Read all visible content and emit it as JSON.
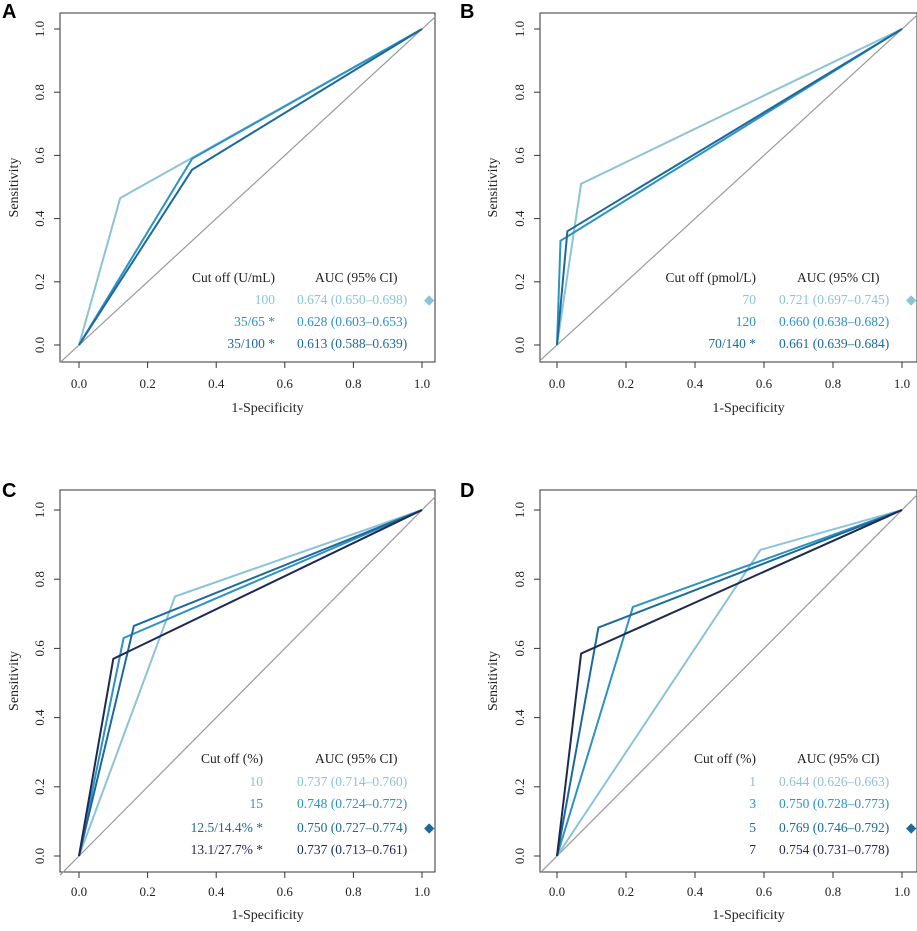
{
  "chart_data": [
    {
      "panel": "A",
      "type": "line",
      "xlabel": "1-Specificity",
      "ylabel": "Sensitivity",
      "xlim": [
        0,
        1
      ],
      "ylim": [
        0,
        1
      ],
      "xticks": [
        "0.0",
        "0.2",
        "0.4",
        "0.6",
        "0.8",
        "1.0"
      ],
      "yticks": [
        "0.0",
        "0.2",
        "0.4",
        "0.6",
        "0.8",
        "1.0"
      ],
      "legend_header": [
        "Cut off (U/mL)",
        "AUC (95% CI)"
      ],
      "series": [
        {
          "name": "100",
          "auc": "0.674 (0.650–0.698)",
          "marker": "◆",
          "color": "#8cc3d6",
          "x": [
            0,
            0.12,
            1
          ],
          "y": [
            0,
            0.465,
            1
          ]
        },
        {
          "name": "35/65 *",
          "auc": "0.628 (0.603–0.653)",
          "marker": "",
          "color": "#2d92c4",
          "x": [
            0,
            0.33,
            1
          ],
          "y": [
            0,
            0.59,
            1
          ]
        },
        {
          "name": "35/100 *",
          "auc": "0.613 (0.588–0.639)",
          "marker": "",
          "color": "#1c6a9c",
          "x": [
            0,
            0.33,
            1
          ],
          "y": [
            0,
            0.555,
            1
          ]
        }
      ]
    },
    {
      "panel": "B",
      "type": "line",
      "xlabel": "1-Specificity",
      "ylabel": "Sensitivity",
      "xlim": [
        0,
        1
      ],
      "ylim": [
        0,
        1
      ],
      "xticks": [
        "0.0",
        "0.2",
        "0.4",
        "0.6",
        "0.8",
        "1.0"
      ],
      "yticks": [
        "0.0",
        "0.2",
        "0.4",
        "0.6",
        "0.8",
        "1.0"
      ],
      "legend_header": [
        "Cut off (pmol/L)",
        "AUC (95% CI)"
      ],
      "series": [
        {
          "name": "70",
          "auc": "0.721 (0.697–0.745)",
          "marker": "◆",
          "color": "#8cc3d6",
          "x": [
            0,
            0.07,
            1
          ],
          "y": [
            0,
            0.51,
            1
          ]
        },
        {
          "name": "120",
          "auc": "0.660 (0.638–0.682)",
          "marker": "",
          "color": "#2d92c4",
          "x": [
            0,
            0.01,
            0.04,
            1
          ],
          "y": [
            0,
            0.33,
            0.35,
            1
          ]
        },
        {
          "name": "70/140 *",
          "auc": "0.661 (0.639–0.684)",
          "marker": "",
          "color": "#1c6a9c",
          "x": [
            0,
            0.03,
            1
          ],
          "y": [
            0,
            0.36,
            1
          ]
        }
      ]
    },
    {
      "panel": "C",
      "type": "line",
      "xlabel": "1-Specificity",
      "ylabel": "Sensitivity",
      "xlim": [
        0,
        1
      ],
      "ylim": [
        0,
        1
      ],
      "xticks": [
        "0.0",
        "0.2",
        "0.4",
        "0.6",
        "0.8",
        "1.0"
      ],
      "yticks": [
        "0.0",
        "0.2",
        "0.4",
        "0.6",
        "0.8",
        "1.0"
      ],
      "legend_header": [
        "Cut off (%)",
        "AUC (95% CI)"
      ],
      "series": [
        {
          "name": "10",
          "auc": "0.737 (0.714–0.760)",
          "marker": "",
          "color": "#8cc3d6",
          "x": [
            0,
            0.28,
            1
          ],
          "y": [
            0,
            0.75,
            1
          ]
        },
        {
          "name": "15",
          "auc": "0.748 (0.724–0.772)",
          "marker": "",
          "color": "#2d92c4",
          "x": [
            0,
            0.13,
            1
          ],
          "y": [
            0,
            0.63,
            1
          ]
        },
        {
          "name": "12.5/14.4% *",
          "auc": "0.750 (0.727–0.774)",
          "marker": "◆",
          "color": "#1c6a9c",
          "x": [
            0,
            0.16,
            1
          ],
          "y": [
            0,
            0.665,
            1
          ]
        },
        {
          "name": "13.1/27.7% *",
          "auc": "0.737 (0.713–0.761)",
          "marker": "",
          "color": "#1e2a52",
          "x": [
            0,
            0.1,
            1
          ],
          "y": [
            0,
            0.57,
            1
          ]
        }
      ]
    },
    {
      "panel": "D",
      "type": "line",
      "xlabel": "1-Specificity",
      "ylabel": "Sensitivity",
      "xlim": [
        0,
        1
      ],
      "ylim": [
        0,
        1
      ],
      "xticks": [
        "0.0",
        "0.2",
        "0.4",
        "0.6",
        "0.8",
        "1.0"
      ],
      "yticks": [
        "0.0",
        "0.2",
        "0.4",
        "0.6",
        "0.8",
        "1.0"
      ],
      "legend_header": [
        "Cut off (%)",
        "AUC (95% CI)"
      ],
      "series": [
        {
          "name": "1",
          "auc": "0.644 (0.626–0.663)",
          "marker": "",
          "color": "#8cc3d6",
          "x": [
            0,
            0.59,
            1
          ],
          "y": [
            0,
            0.885,
            1
          ]
        },
        {
          "name": "3",
          "auc": "0.750 (0.728–0.773)",
          "marker": "",
          "color": "#2d92c4",
          "x": [
            0,
            0.22,
            1
          ],
          "y": [
            0,
            0.72,
            1
          ]
        },
        {
          "name": "5",
          "auc": "0.769 (0.746–0.792)",
          "marker": "◆",
          "color": "#1c6a9c",
          "x": [
            0,
            0.12,
            1
          ],
          "y": [
            0,
            0.66,
            1
          ]
        },
        {
          "name": "7",
          "auc": "0.754 (0.731–0.778)",
          "marker": "",
          "color": "#1e2a52",
          "x": [
            0,
            0.07,
            1
          ],
          "y": [
            0,
            0.585,
            1
          ]
        }
      ]
    }
  ]
}
